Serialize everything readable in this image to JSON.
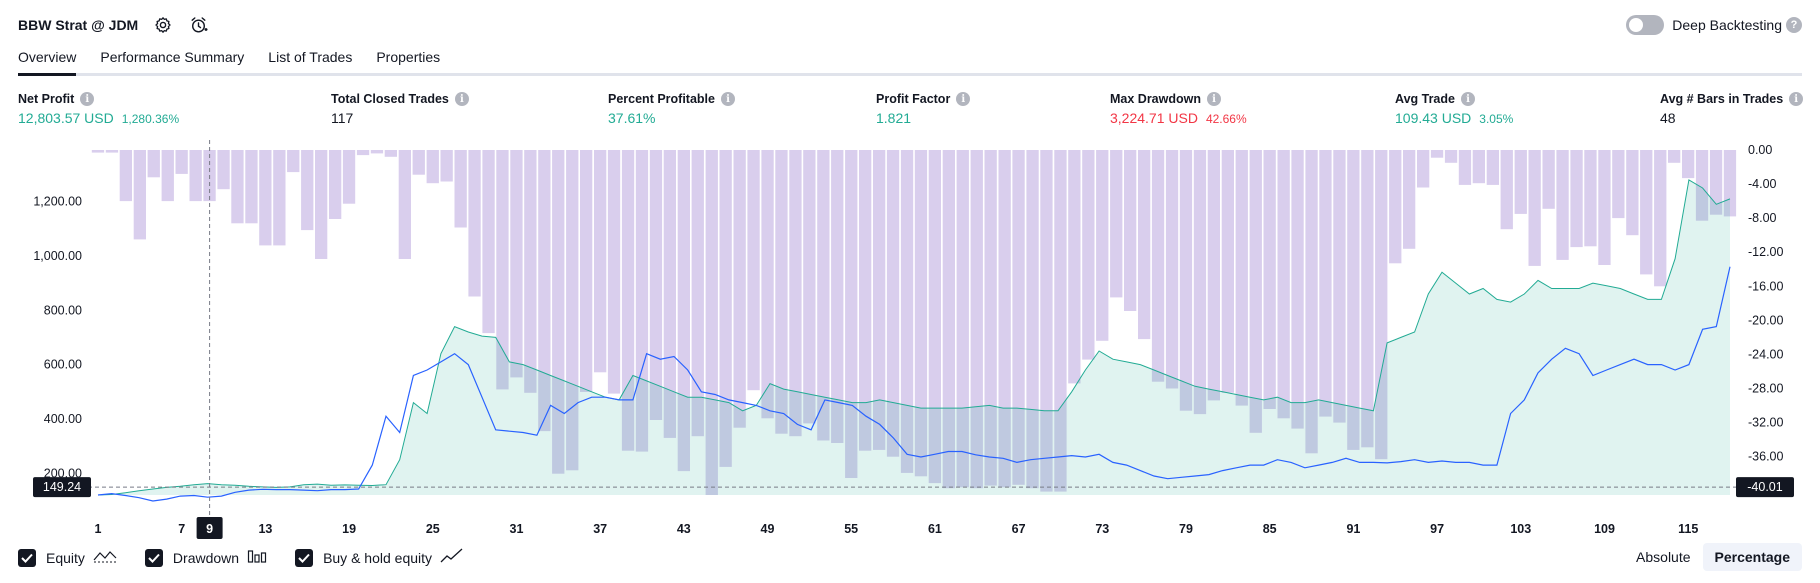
{
  "header": {
    "title": "BBW Strat @ JDM",
    "settings_icon": "gear-icon",
    "alert_icon": "alarm-clock-add-icon",
    "deep_backtesting_label": "Deep Backtesting",
    "deep_backtesting_enabled": false
  },
  "tabs": [
    {
      "label": "Overview",
      "active": true
    },
    {
      "label": "Performance Summary",
      "active": false
    },
    {
      "label": "List of Trades",
      "active": false
    },
    {
      "label": "Properties",
      "active": false
    }
  ],
  "metrics": [
    {
      "label": "Net Profit",
      "value": "12,803.57 USD",
      "sub": "1,280.36%",
      "tone": "pos"
    },
    {
      "label": "Total Closed Trades",
      "value": "117",
      "sub": "",
      "tone": "neu"
    },
    {
      "label": "Percent Profitable",
      "value": "37.61%",
      "sub": "",
      "tone": "pos"
    },
    {
      "label": "Profit Factor",
      "value": "1.821",
      "sub": "",
      "tone": "pos"
    },
    {
      "label": "Max Drawdown",
      "value": "3,224.71 USD",
      "sub": "42.66%",
      "tone": "neg"
    },
    {
      "label": "Avg Trade",
      "value": "109.43 USD",
      "sub": "3.05%",
      "tone": "pos"
    },
    {
      "label": "Avg # Bars in Trades",
      "value": "48",
      "sub": "",
      "tone": "neu"
    }
  ],
  "colors": {
    "equity_line": "#22ab94",
    "equity_fill": "#22ab94",
    "buyhold_line": "#2962ff",
    "drawdown_bar": "#b39ddb",
    "positive": "#22ab94",
    "negative": "#f23645"
  },
  "chart_data": {
    "type": "area",
    "x_ticks": [
      "1",
      "7",
      "13",
      "19",
      "25",
      "31",
      "37",
      "43",
      "49",
      "55",
      "61",
      "67",
      "73",
      "79",
      "85",
      "91",
      "97",
      "103",
      "109",
      "115"
    ],
    "crosshair": {
      "x_label": "9",
      "left_label": "149.24",
      "right_label": "-40.01"
    },
    "y_left": {
      "ticks": [
        "200.00",
        "400.00",
        "600.00",
        "800.00",
        "1,000.00",
        "1,200.00"
      ],
      "range": [
        120,
        1390
      ]
    },
    "y_right": {
      "ticks": [
        "0.00",
        "-4.00",
        "-8.00",
        "-12.00",
        "-16.00",
        "-20.00",
        "-24.00",
        "-28.00",
        "-32.00",
        "-36.00"
      ],
      "range": [
        -40.5,
        0
      ]
    },
    "x_range": [
      1,
      118
    ],
    "series": [
      {
        "name": "Equity",
        "axis": "left",
        "values": [
          120,
          122,
          128,
          136,
          142,
          148,
          152,
          158,
          162,
          158,
          156,
          152,
          150,
          148,
          150,
          158,
          160,
          156,
          157,
          156,
          155,
          158,
          250,
          460,
          420,
          640,
          740,
          720,
          705,
          700,
          610,
          600,
          580,
          560,
          540,
          520,
          500,
          480,
          470,
          560,
          540,
          520,
          500,
          480,
          480,
          470,
          460,
          430,
          450,
          530,
          510,
          500,
          490,
          480,
          470,
          460,
          460,
          470,
          460,
          450,
          440,
          440,
          440,
          440,
          445,
          450,
          440,
          440,
          435,
          430,
          430,
          500,
          580,
          650,
          620,
          610,
          600,
          580,
          560,
          540,
          520,
          510,
          500,
          490,
          480,
          470,
          480,
          460,
          460,
          470,
          460,
          450,
          440,
          430,
          680,
          700,
          720,
          860,
          940,
          900,
          860,
          880,
          840,
          830,
          860,
          910,
          880,
          880,
          880,
          900,
          890,
          880,
          860,
          840,
          840,
          990,
          1280,
          1250,
          1190,
          1210
        ]
      },
      {
        "name": "Buy & hold equity",
        "axis": "left",
        "values": [
          120,
          125,
          118,
          110,
          98,
          105,
          116,
          118,
          112,
          116,
          130,
          138,
          141,
          140,
          140,
          138,
          136,
          140,
          140,
          142,
          230,
          410,
          350,
          560,
          580,
          610,
          640,
          600,
          480,
          360,
          355,
          350,
          340,
          450,
          420,
          460,
          480,
          480,
          470,
          470,
          640,
          620,
          630,
          580,
          500,
          490,
          470,
          460,
          450,
          430,
          420,
          380,
          360,
          470,
          460,
          450,
          410,
          380,
          330,
          270,
          260,
          270,
          280,
          280,
          268,
          260,
          255,
          240,
          250,
          255,
          260,
          265,
          260,
          270,
          240,
          230,
          210,
          190,
          180,
          185,
          190,
          195,
          210,
          220,
          230,
          230,
          250,
          240,
          220,
          230,
          240,
          255,
          240,
          240,
          238,
          243,
          250,
          240,
          245,
          240,
          240,
          230,
          230,
          420,
          470,
          570,
          620,
          660,
          640,
          560,
          580,
          600,
          620,
          600,
          600,
          580,
          600,
          730,
          740,
          960
        ]
      }
    ],
    "drawdown": {
      "name": "Drawdown",
      "axis": "right",
      "values": [
        -0.3,
        -0.3,
        -6.0,
        -10.5,
        -3.2,
        -6.0,
        -2.8,
        -6.0,
        -6.0,
        -4.6,
        -8.6,
        -8.6,
        -11.2,
        -11.2,
        -2.6,
        -9.4,
        -12.8,
        -8.1,
        -6.3,
        -0.6,
        -0.4,
        -0.8,
        -12.8,
        -2.9,
        -3.9,
        -3.7,
        -9.1,
        -17.2,
        -21.5,
        -28.1,
        -26.7,
        -28.5,
        -33.0,
        -38.0,
        -37.6,
        -28.4,
        -26.1,
        -28.6,
        -35.3,
        -35.4,
        -31.7,
        -33.8,
        -37.7,
        -33.6,
        -40.5,
        -37.2,
        -32.6,
        -28.2,
        -31.5,
        -33.3,
        -33.6,
        -32.1,
        -34.1,
        -34.4,
        -38.5,
        -35.3,
        -35.2,
        -36.0,
        -37.9,
        -38.3,
        -39.1,
        -39.7,
        -39.6,
        -39.7,
        -39.4,
        -39.6,
        -39.3,
        -39.7,
        -40.1,
        -40.1,
        -27.4,
        -24.6,
        -22.4,
        -17.3,
        -18.9,
        -22.2,
        -27.2,
        -28.0,
        -30.6,
        -31.0,
        -29.4,
        -28.5,
        -30.0,
        -33.2,
        -30.4,
        -31.5,
        -32.7,
        -35.6,
        -31.3,
        -32.0,
        -35.2,
        -34.9,
        -36.3,
        -13.3,
        -11.6,
        -4.4,
        -0.9,
        -1.5,
        -4.1,
        -3.9,
        -4.1,
        -9.3,
        -7.5,
        -13.6,
        -6.9,
        -12.9,
        -11.4,
        -11.3,
        -13.5,
        -8.0,
        -10.0,
        -14.6,
        -16.0,
        -1.5,
        -3.3,
        -8.3,
        -7.6,
        -7.8
      ]
    }
  },
  "legend": {
    "equity": {
      "label": "Equity",
      "checked": true,
      "icon": "equity-line-icon"
    },
    "drawdown": {
      "label": "Drawdown",
      "checked": true,
      "icon": "bars-icon"
    },
    "buy_hold": {
      "label": "Buy & hold equity",
      "checked": true,
      "icon": "trend-line-icon"
    }
  },
  "mode": {
    "absolute_label": "Absolute",
    "percentage_label": "Percentage",
    "active": "Percentage"
  }
}
